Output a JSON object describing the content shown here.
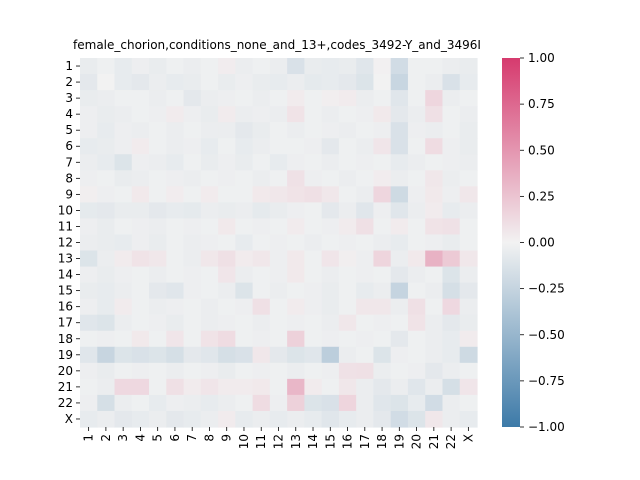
{
  "chart_data": {
    "type": "heatmap",
    "title": "female_chorion,conditions_none_and_13+,codes_3492-Y_and_3496I",
    "xlabel": "",
    "ylabel": "",
    "categories": [
      "1",
      "2",
      "3",
      "4",
      "5",
      "6",
      "7",
      "8",
      "9",
      "10",
      "11",
      "12",
      "13",
      "14",
      "15",
      "16",
      "17",
      "18",
      "19",
      "20",
      "21",
      "22",
      "X"
    ],
    "colorbar": {
      "vmin": -1.0,
      "vmax": 1.0,
      "ticks": [
        -1.0,
        -0.75,
        -0.5,
        -0.25,
        0.0,
        0.25,
        0.5,
        0.75,
        1.0
      ],
      "tick_labels": [
        "−1.00",
        "−0.75",
        "−0.50",
        "−0.25",
        "0.00",
        "0.25",
        "0.50",
        "0.75",
        "1.00"
      ],
      "low_color": "#3d7aa8",
      "mid_color": "#f2f2f2",
      "high_color": "#d63a6e"
    },
    "values": [
      [
        -0.05,
        -0.02,
        -0.06,
        -0.03,
        -0.05,
        -0.02,
        -0.04,
        -0.02,
        0.03,
        -0.04,
        -0.02,
        -0.04,
        -0.14,
        -0.05,
        -0.06,
        -0.05,
        -0.1,
        0.01,
        -0.18,
        -0.02,
        -0.02,
        -0.04,
        -0.05
      ],
      [
        -0.08,
        0.0,
        -0.06,
        -0.08,
        -0.04,
        -0.06,
        -0.05,
        -0.02,
        -0.05,
        -0.03,
        -0.05,
        -0.06,
        -0.04,
        -0.07,
        -0.06,
        -0.08,
        -0.12,
        0.0,
        -0.23,
        -0.02,
        -0.04,
        -0.14,
        -0.06
      ],
      [
        -0.05,
        -0.04,
        -0.02,
        -0.02,
        -0.04,
        -0.02,
        -0.08,
        -0.04,
        -0.03,
        -0.02,
        -0.04,
        -0.02,
        0.04,
        -0.02,
        0.02,
        0.04,
        -0.04,
        -0.02,
        -0.1,
        -0.02,
        0.15,
        -0.04,
        -0.02
      ],
      [
        -0.03,
        -0.05,
        -0.04,
        -0.02,
        -0.03,
        0.04,
        -0.03,
        -0.05,
        0.04,
        -0.04,
        -0.03,
        -0.04,
        0.08,
        -0.02,
        -0.04,
        -0.02,
        -0.03,
        0.05,
        -0.08,
        -0.04,
        0.1,
        -0.02,
        -0.04
      ],
      [
        -0.03,
        -0.06,
        -0.03,
        -0.04,
        -0.02,
        -0.04,
        -0.02,
        -0.04,
        -0.04,
        -0.08,
        -0.05,
        -0.02,
        -0.04,
        -0.02,
        -0.03,
        -0.04,
        -0.02,
        -0.03,
        -0.14,
        -0.03,
        -0.04,
        -0.02,
        -0.05
      ],
      [
        -0.06,
        -0.05,
        -0.03,
        0.04,
        -0.02,
        -0.04,
        -0.03,
        -0.06,
        -0.02,
        -0.06,
        -0.04,
        -0.02,
        -0.02,
        -0.03,
        -0.08,
        -0.02,
        -0.04,
        0.07,
        -0.14,
        -0.02,
        0.12,
        -0.03,
        -0.05
      ],
      [
        -0.04,
        -0.06,
        -0.12,
        -0.03,
        -0.04,
        -0.06,
        -0.02,
        -0.05,
        -0.03,
        -0.05,
        -0.02,
        -0.06,
        -0.03,
        -0.02,
        -0.04,
        -0.02,
        -0.03,
        -0.02,
        -0.06,
        -0.04,
        -0.02,
        -0.03,
        -0.04
      ],
      [
        -0.03,
        -0.02,
        -0.05,
        -0.04,
        -0.02,
        -0.03,
        -0.04,
        -0.02,
        -0.03,
        -0.02,
        -0.04,
        -0.02,
        0.09,
        -0.03,
        -0.02,
        -0.04,
        -0.02,
        0.03,
        -0.04,
        -0.02,
        0.06,
        -0.04,
        -0.02
      ],
      [
        0.02,
        -0.03,
        -0.02,
        0.05,
        -0.02,
        0.03,
        -0.02,
        0.04,
        -0.02,
        -0.02,
        0.05,
        0.06,
        0.08,
        0.1,
        0.06,
        -0.02,
        -0.04,
        0.15,
        -0.2,
        -0.03,
        0.05,
        -0.03,
        0.06
      ],
      [
        -0.07,
        -0.08,
        -0.05,
        -0.05,
        -0.08,
        -0.06,
        -0.07,
        -0.04,
        -0.05,
        -0.04,
        -0.07,
        -0.05,
        -0.03,
        -0.02,
        -0.08,
        -0.04,
        -0.1,
        -0.03,
        -0.1,
        -0.04,
        0.04,
        -0.06,
        -0.04
      ],
      [
        -0.03,
        -0.05,
        -0.02,
        -0.03,
        -0.04,
        -0.02,
        -0.03,
        -0.02,
        0.05,
        -0.02,
        -0.03,
        -0.02,
        0.04,
        -0.02,
        -0.03,
        0.04,
        0.1,
        -0.02,
        0.04,
        -0.02,
        0.08,
        0.09,
        -0.02
      ],
      [
        -0.04,
        -0.05,
        -0.06,
        -0.03,
        -0.05,
        -0.02,
        -0.04,
        -0.03,
        -0.02,
        -0.06,
        -0.02,
        -0.03,
        -0.02,
        -0.04,
        -0.02,
        -0.03,
        -0.02,
        -0.04,
        -0.06,
        -0.02,
        -0.03,
        -0.05,
        -0.02
      ],
      [
        -0.12,
        -0.04,
        0.04,
        0.08,
        0.06,
        -0.02,
        -0.04,
        0.06,
        0.1,
        0.04,
        0.06,
        -0.03,
        0.05,
        -0.02,
        0.07,
        0.02,
        -0.03,
        0.16,
        -0.04,
        0.05,
        0.35,
        0.22,
        0.06
      ],
      [
        -0.03,
        -0.05,
        -0.03,
        -0.02,
        -0.04,
        -0.02,
        -0.03,
        -0.02,
        0.07,
        -0.04,
        -0.02,
        -0.03,
        0.05,
        -0.02,
        -0.04,
        -0.02,
        -0.03,
        -0.02,
        -0.08,
        -0.04,
        -0.02,
        -0.12,
        -0.04
      ],
      [
        -0.05,
        -0.06,
        -0.04,
        -0.02,
        -0.08,
        -0.1,
        -0.03,
        -0.02,
        -0.04,
        -0.12,
        -0.02,
        -0.04,
        -0.02,
        -0.03,
        -0.05,
        -0.02,
        -0.06,
        -0.04,
        -0.25,
        -0.02,
        -0.04,
        -0.16,
        -0.08
      ],
      [
        -0.03,
        -0.06,
        0.04,
        -0.02,
        -0.04,
        -0.03,
        -0.02,
        -0.04,
        -0.02,
        -0.03,
        0.1,
        -0.02,
        0.04,
        -0.03,
        -0.05,
        -0.02,
        0.06,
        0.06,
        -0.04,
        0.1,
        -0.02,
        0.14,
        -0.04
      ],
      [
        -0.1,
        -0.12,
        -0.04,
        -0.02,
        -0.03,
        -0.05,
        -0.02,
        -0.04,
        -0.03,
        -0.02,
        -0.04,
        -0.02,
        -0.03,
        -0.02,
        -0.04,
        0.06,
        -0.02,
        -0.03,
        -0.02,
        0.08,
        -0.04,
        -0.08,
        -0.05
      ],
      [
        -0.02,
        -0.03,
        -0.02,
        0.05,
        -0.02,
        0.07,
        -0.02,
        0.08,
        0.12,
        -0.02,
        -0.03,
        -0.02,
        0.18,
        -0.02,
        -0.03,
        -0.02,
        -0.03,
        -0.02,
        -0.08,
        -0.02,
        -0.04,
        -0.06,
        0.04
      ],
      [
        -0.1,
        -0.24,
        -0.12,
        -0.14,
        -0.12,
        -0.16,
        -0.08,
        -0.1,
        -0.16,
        -0.14,
        0.06,
        -0.08,
        -0.12,
        -0.1,
        -0.3,
        -0.04,
        -0.02,
        -0.12,
        -0.03,
        -0.02,
        -0.04,
        -0.06,
        -0.2
      ],
      [
        -0.03,
        -0.05,
        -0.02,
        -0.03,
        -0.02,
        -0.04,
        -0.02,
        -0.03,
        -0.05,
        -0.02,
        -0.03,
        -0.02,
        -0.04,
        -0.02,
        -0.03,
        0.09,
        0.1,
        -0.04,
        -0.02,
        -0.03,
        -0.08,
        -0.04,
        -0.02
      ],
      [
        -0.02,
        -0.04,
        0.14,
        0.14,
        -0.02,
        0.1,
        0.04,
        0.07,
        0.04,
        0.04,
        0.05,
        -0.02,
        0.32,
        0.04,
        -0.02,
        0.06,
        -0.04,
        -0.08,
        -0.04,
        -0.1,
        -0.04,
        -0.16,
        0.07
      ],
      [
        -0.03,
        -0.16,
        -0.04,
        -0.02,
        -0.06,
        -0.03,
        -0.04,
        -0.06,
        -0.04,
        -0.02,
        0.12,
        -0.03,
        0.18,
        -0.12,
        -0.14,
        0.16,
        -0.04,
        -0.1,
        -0.12,
        -0.06,
        -0.18,
        -0.04,
        -0.02
      ],
      [
        -0.06,
        -0.04,
        -0.08,
        -0.06,
        -0.04,
        -0.08,
        -0.06,
        -0.04,
        0.04,
        -0.06,
        -0.04,
        -0.06,
        -0.04,
        -0.06,
        -0.1,
        -0.06,
        -0.04,
        -0.08,
        -0.18,
        -0.12,
        0.06,
        -0.04,
        -0.06
      ]
    ]
  }
}
